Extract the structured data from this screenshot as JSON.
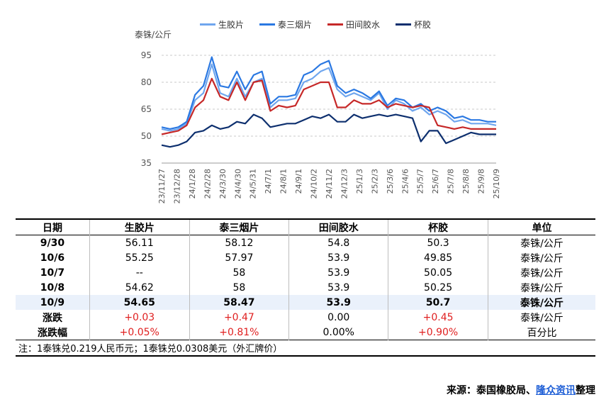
{
  "chart_data": {
    "type": "line",
    "unit_label": "泰铢/公斤",
    "ylim": [
      35,
      95
    ],
    "yticks": [
      35,
      50,
      65,
      80,
      95
    ],
    "x_labels": [
      "23/11/27",
      "23/12/28",
      "24/1/28",
      "24/2/28",
      "24/3/30",
      "24/4/30",
      "24/5/31",
      "24/7/1",
      "24/8/1",
      "24/9/1",
      "24/10/2",
      "24/11/2",
      "24/12/3",
      "25/1/3",
      "25/2/3",
      "25/3/6",
      "25/4/6",
      "25/5/7",
      "25/6/7",
      "25/7/8",
      "25/8/8",
      "25/9/8",
      "25/10/9"
    ],
    "series": [
      {
        "name": "生胶片",
        "color": "#6fa6ee",
        "values": [
          54,
          53,
          54,
          57,
          70,
          74,
          90,
          74,
          72,
          82,
          72,
          80,
          82,
          66,
          70,
          70,
          71,
          80,
          82,
          86,
          88,
          76,
          72,
          74,
          72,
          70,
          74,
          65,
          70,
          68,
          64,
          66,
          62,
          64,
          62,
          58,
          59,
          57,
          57,
          57,
          56
        ]
      },
      {
        "name": "泰三烟片",
        "color": "#2a78e2",
        "values": [
          55,
          54,
          55,
          58,
          73,
          78,
          94,
          78,
          77,
          86,
          76,
          84,
          86,
          68,
          72,
          72,
          73,
          84,
          86,
          90,
          92,
          78,
          74,
          76,
          74,
          71,
          75,
          67,
          71,
          70,
          66,
          68,
          64,
          66,
          64,
          60,
          61,
          59,
          59,
          58,
          58
        ]
      },
      {
        "name": "田间胶水",
        "color": "#c62828",
        "values": [
          51,
          52,
          53,
          56,
          66,
          70,
          82,
          72,
          70,
          80,
          70,
          80,
          81,
          64,
          67,
          66,
          67,
          76,
          78,
          80,
          80,
          66,
          66,
          70,
          68,
          68,
          70,
          66,
          68,
          67,
          66,
          67,
          66,
          56,
          55,
          54,
          55,
          54,
          54,
          54,
          54
        ]
      },
      {
        "name": "杯胶",
        "color": "#0d2f6e",
        "values": [
          45,
          44,
          45,
          47,
          52,
          53,
          56,
          54,
          55,
          58,
          57,
          62,
          60,
          55,
          56,
          57,
          57,
          59,
          61,
          60,
          62,
          58,
          58,
          62,
          60,
          61,
          62,
          61,
          62,
          61,
          60,
          47,
          53,
          53,
          46,
          48,
          50,
          52,
          51,
          51,
          51
        ]
      }
    ],
    "legend_position": "top"
  },
  "table": {
    "headers": [
      "日期",
      "生胶片",
      "泰三烟片",
      "田间胶水",
      "杯胶",
      "单位"
    ],
    "rows": [
      {
        "date": "9/30",
        "a": "56.11",
        "b": "58.12",
        "c": "54.8",
        "d": "50.3",
        "unit": "泰铢/公斤"
      },
      {
        "date": "10/6",
        "a": "55.25",
        "b": "57.97",
        "c": "53.9",
        "d": "49.85",
        "unit": "泰铢/公斤"
      },
      {
        "date": "10/7",
        "a": "--",
        "b": "58",
        "c": "53.9",
        "d": "50.05",
        "unit": "泰铢/公斤"
      },
      {
        "date": "10/8",
        "a": "54.62",
        "b": "58",
        "c": "53.9",
        "d": "50.25",
        "unit": "泰铢/公斤"
      },
      {
        "date": "10/9",
        "a": "54.65",
        "b": "58.47",
        "c": "53.9",
        "d": "50.7",
        "unit": "泰铢/公斤"
      },
      {
        "date": "涨跌",
        "a": "+0.03",
        "b": "+0.47",
        "c": "0.00",
        "d": "+0.45",
        "unit": "泰铢/公斤"
      },
      {
        "date": "涨跌幅",
        "a": "+0.05%",
        "b": "+0.81%",
        "c": "0.00%",
        "d": "+0.90%",
        "unit": "百分比"
      }
    ],
    "note": "注：1泰铢兑0.219人民币元；1泰铢兑0.0308美元（外汇牌价）"
  },
  "source": {
    "prefix": "来源：泰国橡胶局、",
    "link": "隆众资讯",
    "suffix": "整理"
  }
}
